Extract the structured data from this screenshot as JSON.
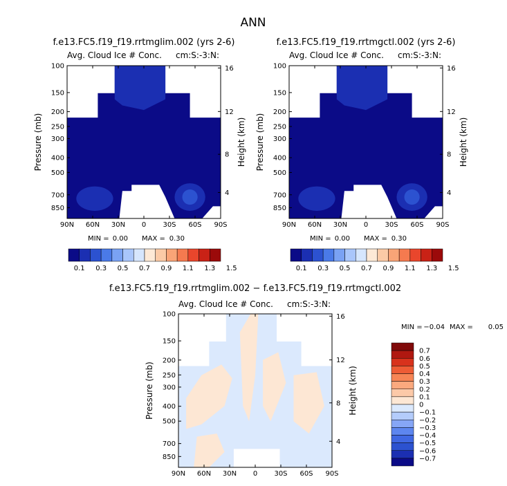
{
  "page": {
    "title": "ANN"
  },
  "colors": {
    "abs_scale": [
      "#0b0b87",
      "#1b2fb2",
      "#2c52d0",
      "#4a7ae8",
      "#7aa2f4",
      "#a9c6fb",
      "#d6e6fd",
      "#fde9d6",
      "#fbcaa6",
      "#f9a477",
      "#f57a4f",
      "#e9462c",
      "#c92216",
      "#9b0a0a"
    ],
    "diff_scale": [
      "#0b0b87",
      "#1b2fb2",
      "#2c52d0",
      "#3f67e2",
      "#5d86ef",
      "#86a6f6",
      "#b4ccfb",
      "#dbe9fd",
      "#fde7d4",
      "#fcc9a8",
      "#fba97e",
      "#f78555",
      "#ee5c35",
      "#d8321c",
      "#b01810",
      "#800a0a"
    ],
    "missing": "#ffffff"
  },
  "chart_data": [
    {
      "type": "heatmap",
      "panel": "left",
      "title": "f.e13.FC5.f19_f19.rrtmglim.002 (yrs 2-6)",
      "subtitle": "Avg. Cloud Ice # Conc.",
      "units": "cm:S:-3:N:",
      "ylabel": "Pressure (mb)",
      "y2label": "Height (km)",
      "x_ticks": [
        "90N",
        "60N",
        "30N",
        "0",
        "30S",
        "60S",
        "90S"
      ],
      "x_tick_values": [
        90,
        60,
        30,
        0,
        -30,
        -60,
        -90
      ],
      "y_ticks": [
        "100",
        "150",
        "200",
        "250",
        "300",
        "400",
        "500",
        "700",
        "850"
      ],
      "y_tick_values": [
        100,
        150,
        200,
        250,
        300,
        400,
        500,
        700,
        850
      ],
      "y2_ticks": [
        "16",
        "12",
        "8",
        "4"
      ],
      "y2_tick_values": [
        16,
        12,
        8,
        4
      ],
      "xlim": [
        90,
        -90
      ],
      "ylim": [
        100,
        1000
      ],
      "y_scale": "log",
      "min_label": "MIN =",
      "min_value": "0.00",
      "max_label": "MAX =",
      "max_value": "0.30",
      "colorbar_labels": [
        "0.1",
        "0.3",
        "0.5",
        "0.7",
        "0.9",
        "1.1",
        "1.3",
        "1.5"
      ],
      "colorbar_orientation": "horizontal"
    },
    {
      "type": "heatmap",
      "panel": "right",
      "title": "f.e13.FC5.f19_f19.rrtmgctl.002 (yrs 2-6)",
      "subtitle": "Avg. Cloud Ice # Conc.",
      "units": "cm:S:-3:N:",
      "ylabel": "Pressure (mb)",
      "y2label": "Height (km)",
      "x_ticks": [
        "90N",
        "60N",
        "30N",
        "0",
        "30S",
        "60S",
        "90S"
      ],
      "x_tick_values": [
        90,
        60,
        30,
        0,
        -30,
        -60,
        -90
      ],
      "y_ticks": [
        "100",
        "150",
        "200",
        "250",
        "300",
        "400",
        "500",
        "700",
        "850"
      ],
      "y_tick_values": [
        100,
        150,
        200,
        250,
        300,
        400,
        500,
        700,
        850
      ],
      "y2_ticks": [
        "16",
        "12",
        "8",
        "4"
      ],
      "y2_tick_values": [
        16,
        12,
        8,
        4
      ],
      "xlim": [
        90,
        -90
      ],
      "ylim": [
        100,
        1000
      ],
      "y_scale": "log",
      "min_label": "MIN =",
      "min_value": "0.00",
      "max_label": "MAX =",
      "max_value": "0.30",
      "colorbar_labels": [
        "0.1",
        "0.3",
        "0.5",
        "0.7",
        "0.9",
        "1.1",
        "1.3",
        "1.5"
      ],
      "colorbar_orientation": "horizontal"
    },
    {
      "type": "heatmap",
      "panel": "difference",
      "title": "f.e13.FC5.f19_f19.rrtmglim.002 − f.e13.FC5.f19_f19.rrtmgctl.002",
      "subtitle": "Avg. Cloud Ice # Conc.",
      "units": "cm:S:-3:N:",
      "ylabel": "Pressure (mb)",
      "y2label": "Height (km)",
      "x_ticks": [
        "90N",
        "60N",
        "30N",
        "0",
        "30S",
        "60S",
        "90S"
      ],
      "x_tick_values": [
        90,
        60,
        30,
        0,
        -30,
        -60,
        -90
      ],
      "y_ticks": [
        "100",
        "150",
        "200",
        "250",
        "300",
        "400",
        "500",
        "700",
        "850"
      ],
      "y_tick_values": [
        100,
        150,
        200,
        250,
        300,
        400,
        500,
        700,
        850
      ],
      "y2_ticks": [
        "16",
        "12",
        "8",
        "4"
      ],
      "y2_tick_values": [
        16,
        12,
        8,
        4
      ],
      "xlim": [
        90,
        -90
      ],
      "ylim": [
        100,
        1000
      ],
      "y_scale": "log",
      "min_label": "MIN =",
      "min_value": "−0.04",
      "max_label": "MAX =",
      "max_value": "0.05",
      "colorbar_labels": [
        "0.7",
        "0.6",
        "0.5",
        "0.4",
        "0.3",
        "0.2",
        "0.1",
        "0",
        "−0.1",
        "−0.2",
        "−0.3",
        "−0.4",
        "−0.5",
        "−0.6",
        "−0.7"
      ],
      "colorbar_orientation": "vertical"
    }
  ]
}
